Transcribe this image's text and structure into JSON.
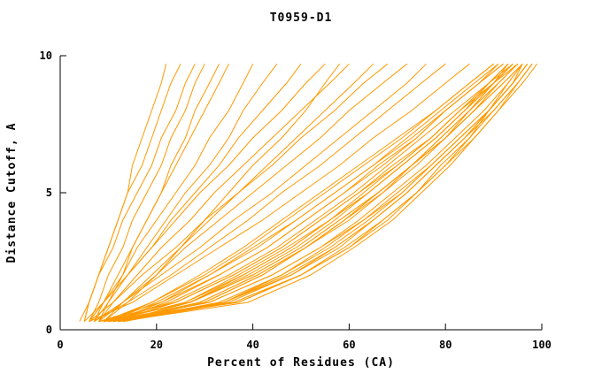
{
  "chart_data": {
    "type": "line",
    "title": "T0959-D1",
    "xlabel": "Percent of Residues (CA)",
    "ylabel": "Distance Cutoff, A",
    "xlim": [
      0,
      100
    ],
    "ylim": [
      0,
      10
    ],
    "xticks": [
      0,
      20,
      40,
      60,
      80,
      100
    ],
    "yticks": [
      0,
      5,
      10
    ],
    "grid": false,
    "legend": "none",
    "line_color": "#FF9900",
    "cutoffs": [
      0.3,
      1,
      2,
      3,
      4,
      5,
      6,
      7,
      8,
      9,
      9.7
    ],
    "series_percent": [
      [
        10,
        37,
        50,
        60,
        67,
        74,
        79,
        85,
        89,
        94,
        97
      ],
      [
        11,
        29,
        41,
        51,
        59,
        66,
        73,
        80,
        85,
        91,
        95
      ],
      [
        9,
        27,
        39,
        49,
        57,
        64,
        71,
        78,
        84,
        89,
        93
      ],
      [
        12,
        39,
        52,
        61,
        69,
        75,
        81,
        86,
        91,
        95,
        98
      ],
      [
        10,
        20,
        31,
        40,
        49,
        57,
        65,
        73,
        80,
        87,
        92
      ],
      [
        8,
        27,
        40,
        50,
        58,
        66,
        73,
        80,
        86,
        92,
        96
      ],
      [
        11,
        24,
        36,
        46,
        54,
        62,
        69,
        77,
        83,
        90,
        94
      ],
      [
        13,
        36,
        50,
        59,
        67,
        74,
        80,
        86,
        91,
        96,
        99
      ],
      [
        9,
        19,
        30,
        39,
        47,
        55,
        63,
        71,
        78,
        85,
        90
      ],
      [
        10,
        31,
        44,
        54,
        62,
        69,
        76,
        82,
        88,
        93,
        96
      ],
      [
        12,
        27,
        38,
        48,
        56,
        64,
        71,
        78,
        84,
        90,
        93
      ],
      [
        8,
        21,
        33,
        43,
        51,
        59,
        66,
        74,
        80,
        87,
        91
      ],
      [
        11,
        34,
        48,
        57,
        65,
        72,
        78,
        84,
        89,
        94,
        97
      ],
      [
        10,
        26,
        37,
        47,
        56,
        63,
        70,
        77,
        83,
        89,
        94
      ],
      [
        9,
        27,
        40,
        50,
        58,
        66,
        73,
        79,
        85,
        91,
        95
      ],
      [
        13,
        34,
        46,
        56,
        64,
        71,
        77,
        83,
        89,
        93,
        96
      ],
      [
        10,
        34,
        47,
        57,
        65,
        72,
        78,
        84,
        90,
        95,
        98
      ],
      [
        11,
        22,
        33,
        43,
        51,
        59,
        67,
        74,
        80,
        87,
        92
      ],
      [
        12,
        30,
        42,
        51,
        59,
        67,
        73,
        80,
        86,
        91,
        95
      ],
      [
        9,
        31,
        44,
        54,
        63,
        70,
        77,
        83,
        89,
        94,
        97
      ],
      [
        10,
        23,
        35,
        45,
        53,
        61,
        68,
        75,
        82,
        89,
        93
      ],
      [
        8,
        24,
        36,
        46,
        54,
        62,
        70,
        77,
        83,
        90,
        94
      ],
      [
        12,
        35,
        48,
        58,
        65,
        72,
        78,
        84,
        89,
        94,
        97
      ],
      [
        11,
        29,
        41,
        51,
        60,
        67,
        74,
        80,
        86,
        92,
        96
      ],
      [
        10,
        19,
        29,
        38,
        46,
        54,
        62,
        70,
        78,
        85,
        90
      ],
      [
        13,
        30,
        42,
        51,
        59,
        66,
        73,
        79,
        85,
        90,
        94
      ],
      [
        9,
        37,
        50,
        60,
        68,
        74,
        80,
        85,
        90,
        95,
        98
      ],
      [
        10,
        26,
        38,
        48,
        56,
        64,
        71,
        78,
        84,
        90,
        95
      ],
      [
        11,
        21,
        31,
        41,
        49,
        57,
        65,
        72,
        79,
        86,
        91
      ],
      [
        12,
        33,
        46,
        55,
        63,
        71,
        77,
        83,
        89,
        94,
        96
      ],
      [
        7,
        14,
        23,
        31,
        39,
        46,
        54,
        61,
        68,
        75,
        80
      ],
      [
        8,
        13,
        20,
        26,
        33,
        40,
        47,
        54,
        60,
        67,
        72
      ],
      [
        6,
        15,
        24,
        33,
        42,
        50,
        58,
        65,
        73,
        80,
        85
      ],
      [
        9,
        13,
        19,
        25,
        31,
        37,
        43,
        49,
        55,
        61,
        65
      ],
      [
        7,
        13,
        21,
        29,
        36,
        44,
        51,
        58,
        65,
        72,
        76
      ],
      [
        8,
        11,
        16,
        21,
        27,
        32,
        38,
        44,
        50,
        56,
        60
      ],
      [
        6,
        11,
        17,
        24,
        30,
        37,
        44,
        50,
        57,
        63,
        68
      ],
      [
        7,
        10,
        14,
        19,
        24,
        29,
        35,
        40,
        46,
        51,
        55
      ],
      [
        5,
        6,
        8,
        10,
        12,
        14,
        17,
        19,
        21,
        23,
        25
      ],
      [
        6,
        8,
        10,
        13,
        15,
        18,
        21,
        23,
        26,
        28,
        30
      ],
      [
        5,
        6,
        8,
        10,
        12,
        14,
        15,
        17,
        19,
        21,
        22
      ],
      [
        7,
        9,
        12,
        15,
        18,
        21,
        24,
        27,
        30,
        33,
        35
      ],
      [
        6,
        9,
        13,
        16,
        20,
        24,
        28,
        31,
        35,
        38,
        40
      ],
      [
        5,
        9,
        14,
        18,
        22,
        26,
        31,
        35,
        38,
        42,
        45
      ],
      [
        4,
        6,
        8,
        11,
        13,
        16,
        19,
        21,
        24,
        26,
        28
      ],
      [
        8,
        10,
        13,
        15,
        18,
        21,
        23,
        26,
        28,
        31,
        33
      ],
      [
        6,
        9,
        14,
        19,
        23,
        28,
        33,
        37,
        42,
        47,
        50
      ],
      [
        9,
        14,
        20,
        25,
        30,
        35,
        40,
        46,
        51,
        55,
        58
      ]
    ]
  }
}
